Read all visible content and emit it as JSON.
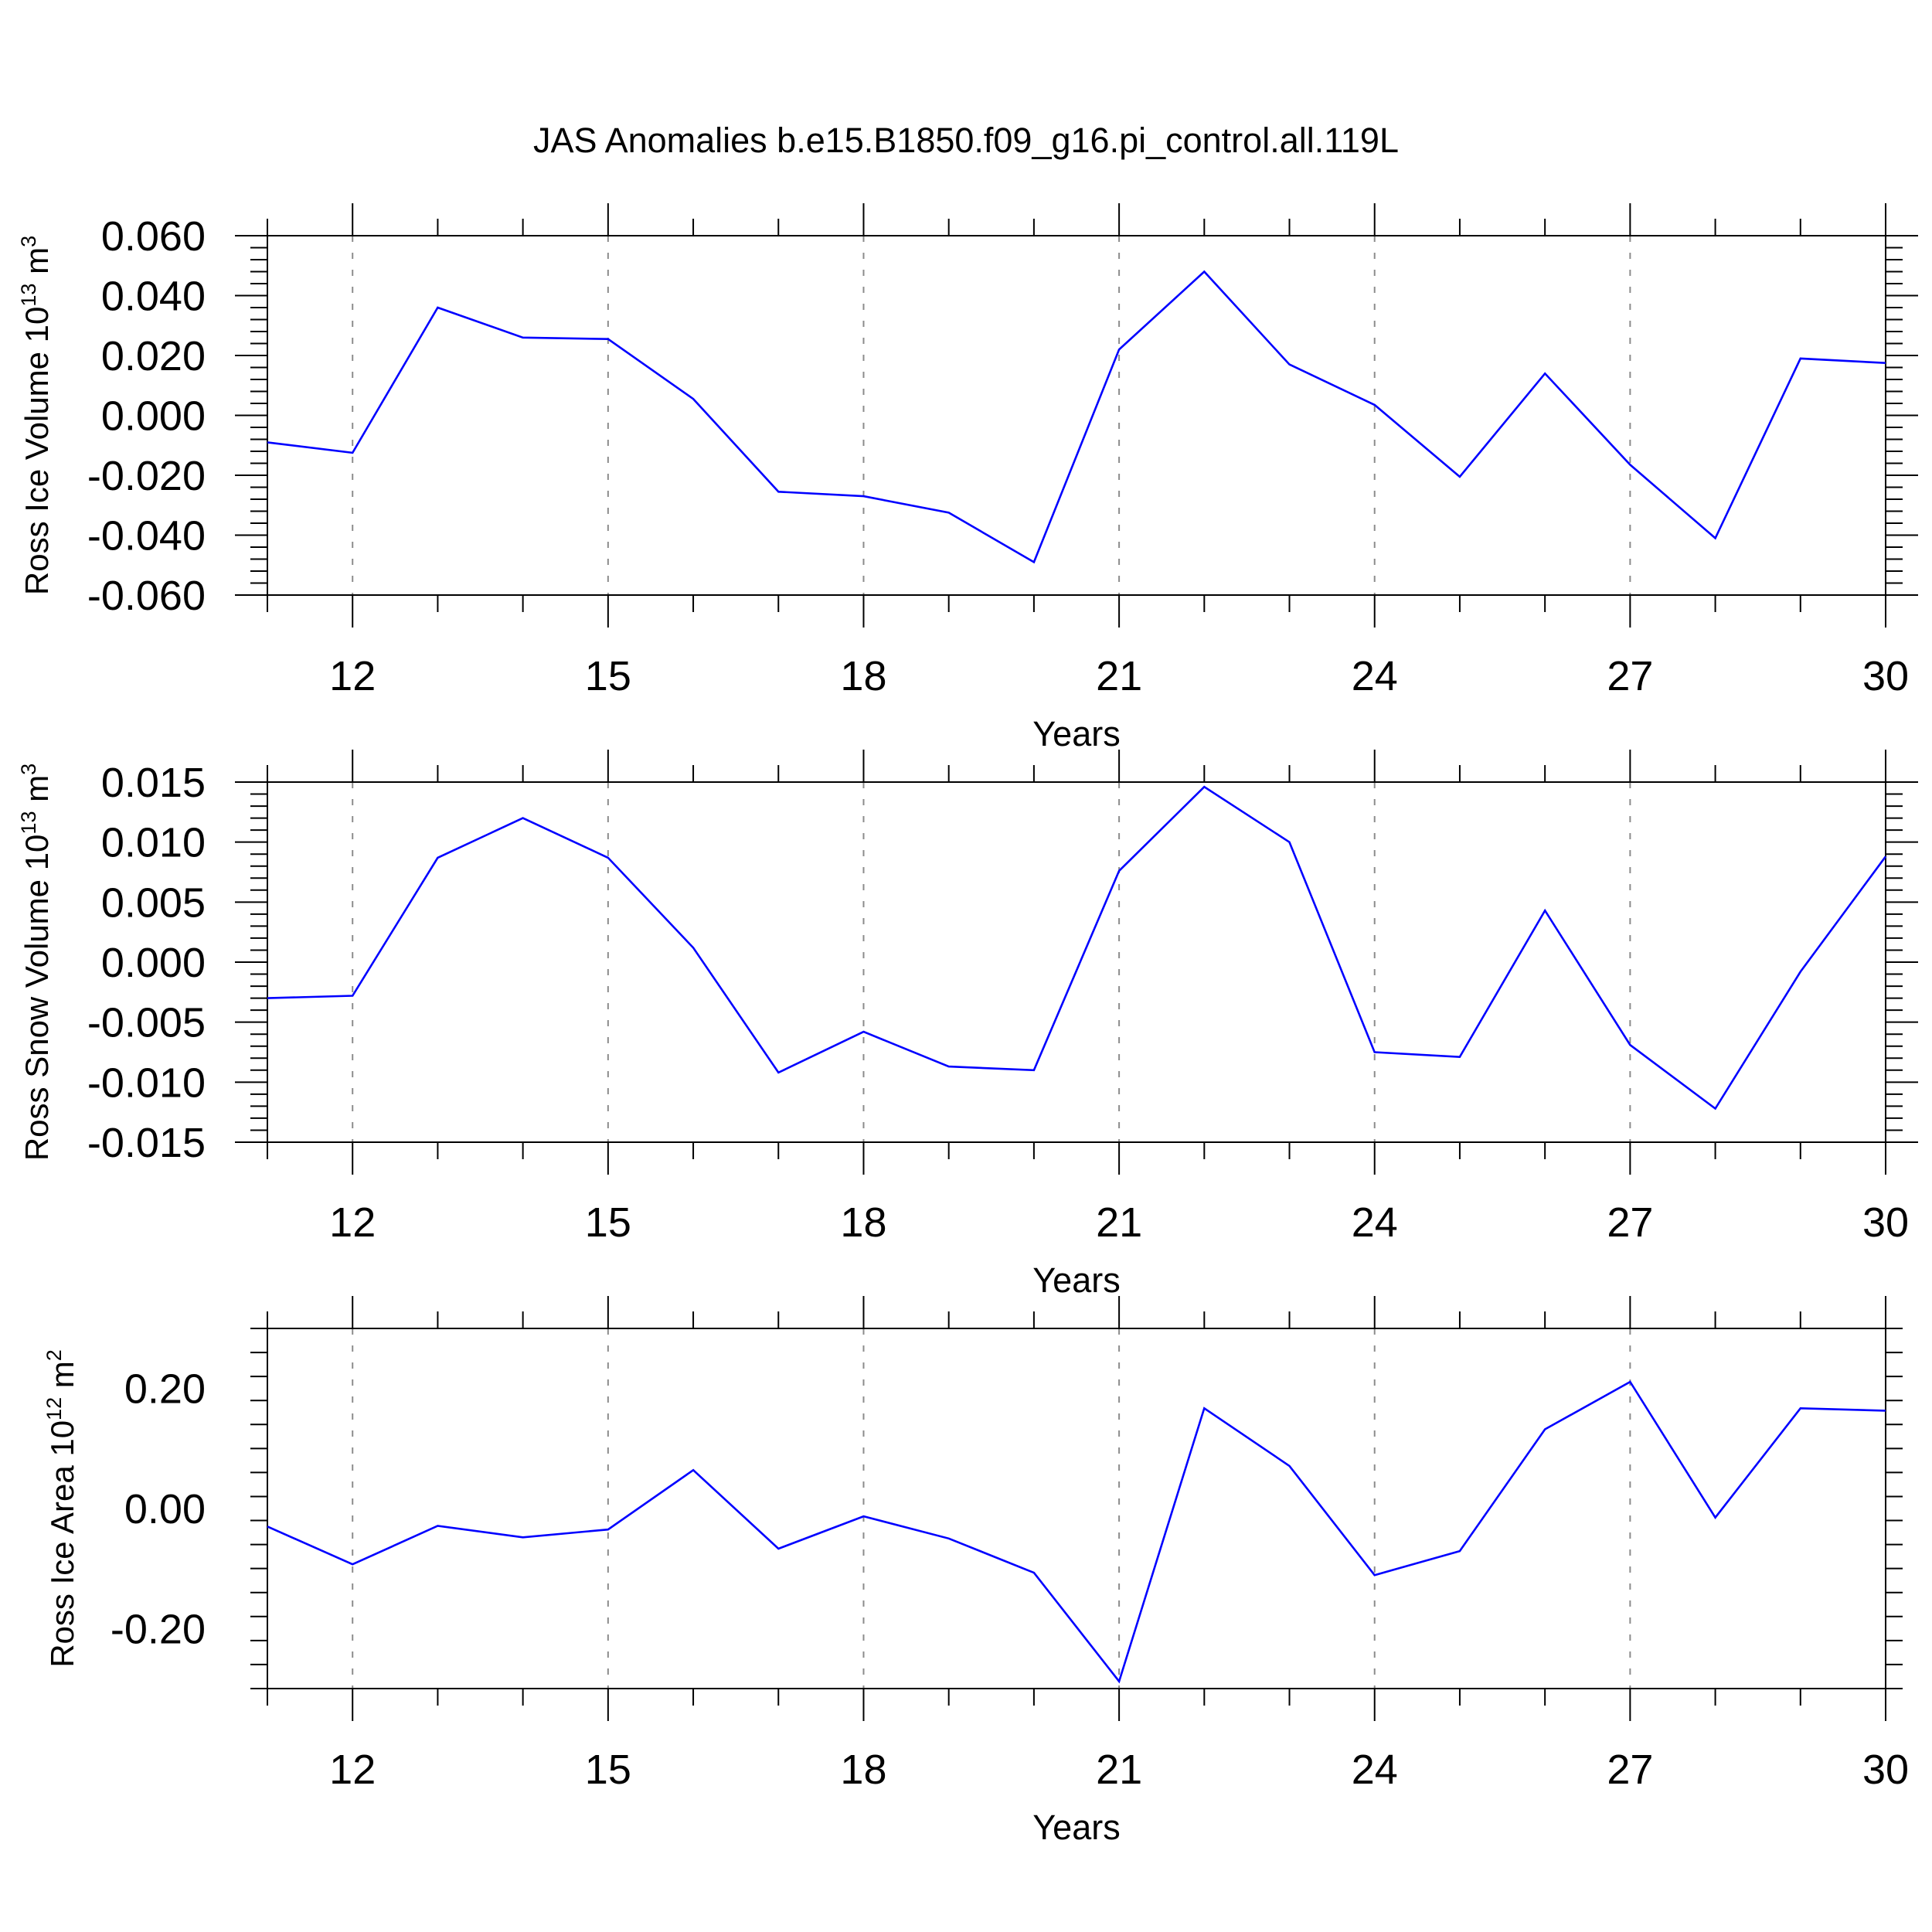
{
  "figure": {
    "title": "JAS Anomalies b.e15.B1850.f09_g16.pi_control.all.119L"
  },
  "colors": {
    "line": "#0000ff",
    "axis": "#000000",
    "grid": "#8c8c8c"
  },
  "chart_data": [
    {
      "type": "line",
      "title": "",
      "xlabel": "Years",
      "ylabel_main": "Ross Ice Volume 10",
      "ylabel_exp": "13",
      "ylabel_unit": " m",
      "ylabel_unit_exp": "3",
      "xlim": [
        11,
        30
      ],
      "ylim": [
        -0.06,
        0.06
      ],
      "x_ticks": [
        "12",
        "15",
        "18",
        "21",
        "24",
        "27",
        "30"
      ],
      "y_ticks": [
        "0.060",
        "0.040",
        "0.020",
        "0.000",
        "-0.020",
        "-0.040",
        "-0.060"
      ],
      "y_tick_values": [
        0.06,
        0.04,
        0.02,
        0.0,
        -0.02,
        -0.04,
        -0.06
      ],
      "grid": "vertical dashed at major x ticks",
      "series": [
        {
          "x": [
            11,
            12,
            13,
            14,
            15,
            16,
            17,
            18,
            19,
            20,
            21,
            22,
            23,
            24,
            25,
            26,
            27,
            28,
            29,
            30
          ],
          "values": [
            -0.009,
            -0.0125,
            0.036,
            0.026,
            0.0255,
            0.0055,
            -0.0255,
            -0.027,
            -0.0325,
            -0.049,
            0.022,
            0.048,
            0.017,
            0.0035,
            -0.0205,
            0.014,
            -0.0165,
            -0.041,
            0.019,
            0.0175
          ]
        }
      ]
    },
    {
      "type": "line",
      "title": "",
      "xlabel": "Years",
      "ylabel_main": "Ross Snow Volume 10",
      "ylabel_exp": "13",
      "ylabel_unit": " m",
      "ylabel_unit_exp": "3",
      "xlim": [
        11,
        30
      ],
      "ylim": [
        -0.015,
        0.015
      ],
      "x_ticks": [
        "12",
        "15",
        "18",
        "21",
        "24",
        "27",
        "30"
      ],
      "y_ticks": [
        "0.015",
        "0.010",
        "0.005",
        "0.000",
        "-0.005",
        "-0.010",
        "-0.015"
      ],
      "y_tick_values": [
        0.015,
        0.01,
        0.005,
        0.0,
        -0.005,
        -0.01,
        -0.015
      ],
      "grid": "vertical dashed at major x ticks",
      "series": [
        {
          "x": [
            11,
            12,
            13,
            14,
            15,
            16,
            17,
            18,
            19,
            20,
            21,
            22,
            23,
            24,
            25,
            26,
            27,
            28,
            29,
            30
          ],
          "values": [
            -0.003,
            -0.0028,
            0.0087,
            0.012,
            0.0087,
            0.0012,
            -0.0092,
            -0.0058,
            -0.0087,
            -0.009,
            0.0076,
            0.0146,
            0.01,
            -0.0075,
            -0.0079,
            0.0043,
            -0.0069,
            -0.0122,
            -0.0008,
            0.0088
          ]
        }
      ]
    },
    {
      "type": "line",
      "title": "",
      "xlabel": "Years",
      "ylabel_main": "Ross Ice Area 10",
      "ylabel_exp": "12",
      "ylabel_unit": " m",
      "ylabel_unit_exp": "2",
      "xlim": [
        11,
        30
      ],
      "ylim": [
        -0.3,
        0.3
      ],
      "x_ticks": [
        "12",
        "15",
        "18",
        "21",
        "24",
        "27",
        "30"
      ],
      "y_ticks": [
        "0.20",
        "0.00",
        "-0.20"
      ],
      "y_tick_values": [
        0.2,
        0.0,
        -0.2
      ],
      "grid": "vertical dashed at major x ticks",
      "series": [
        {
          "x": [
            11,
            12,
            13,
            14,
            15,
            16,
            17,
            18,
            19,
            20,
            21,
            22,
            23,
            24,
            25,
            26,
            27,
            28,
            29,
            30
          ],
          "values": [
            -0.03,
            -0.093,
            -0.029,
            -0.048,
            -0.035,
            0.064,
            -0.067,
            -0.013,
            -0.05,
            -0.107,
            -0.288,
            0.167,
            0.071,
            -0.111,
            -0.071,
            0.132,
            0.211,
            -0.015,
            0.167,
            0.163
          ]
        }
      ]
    }
  ]
}
